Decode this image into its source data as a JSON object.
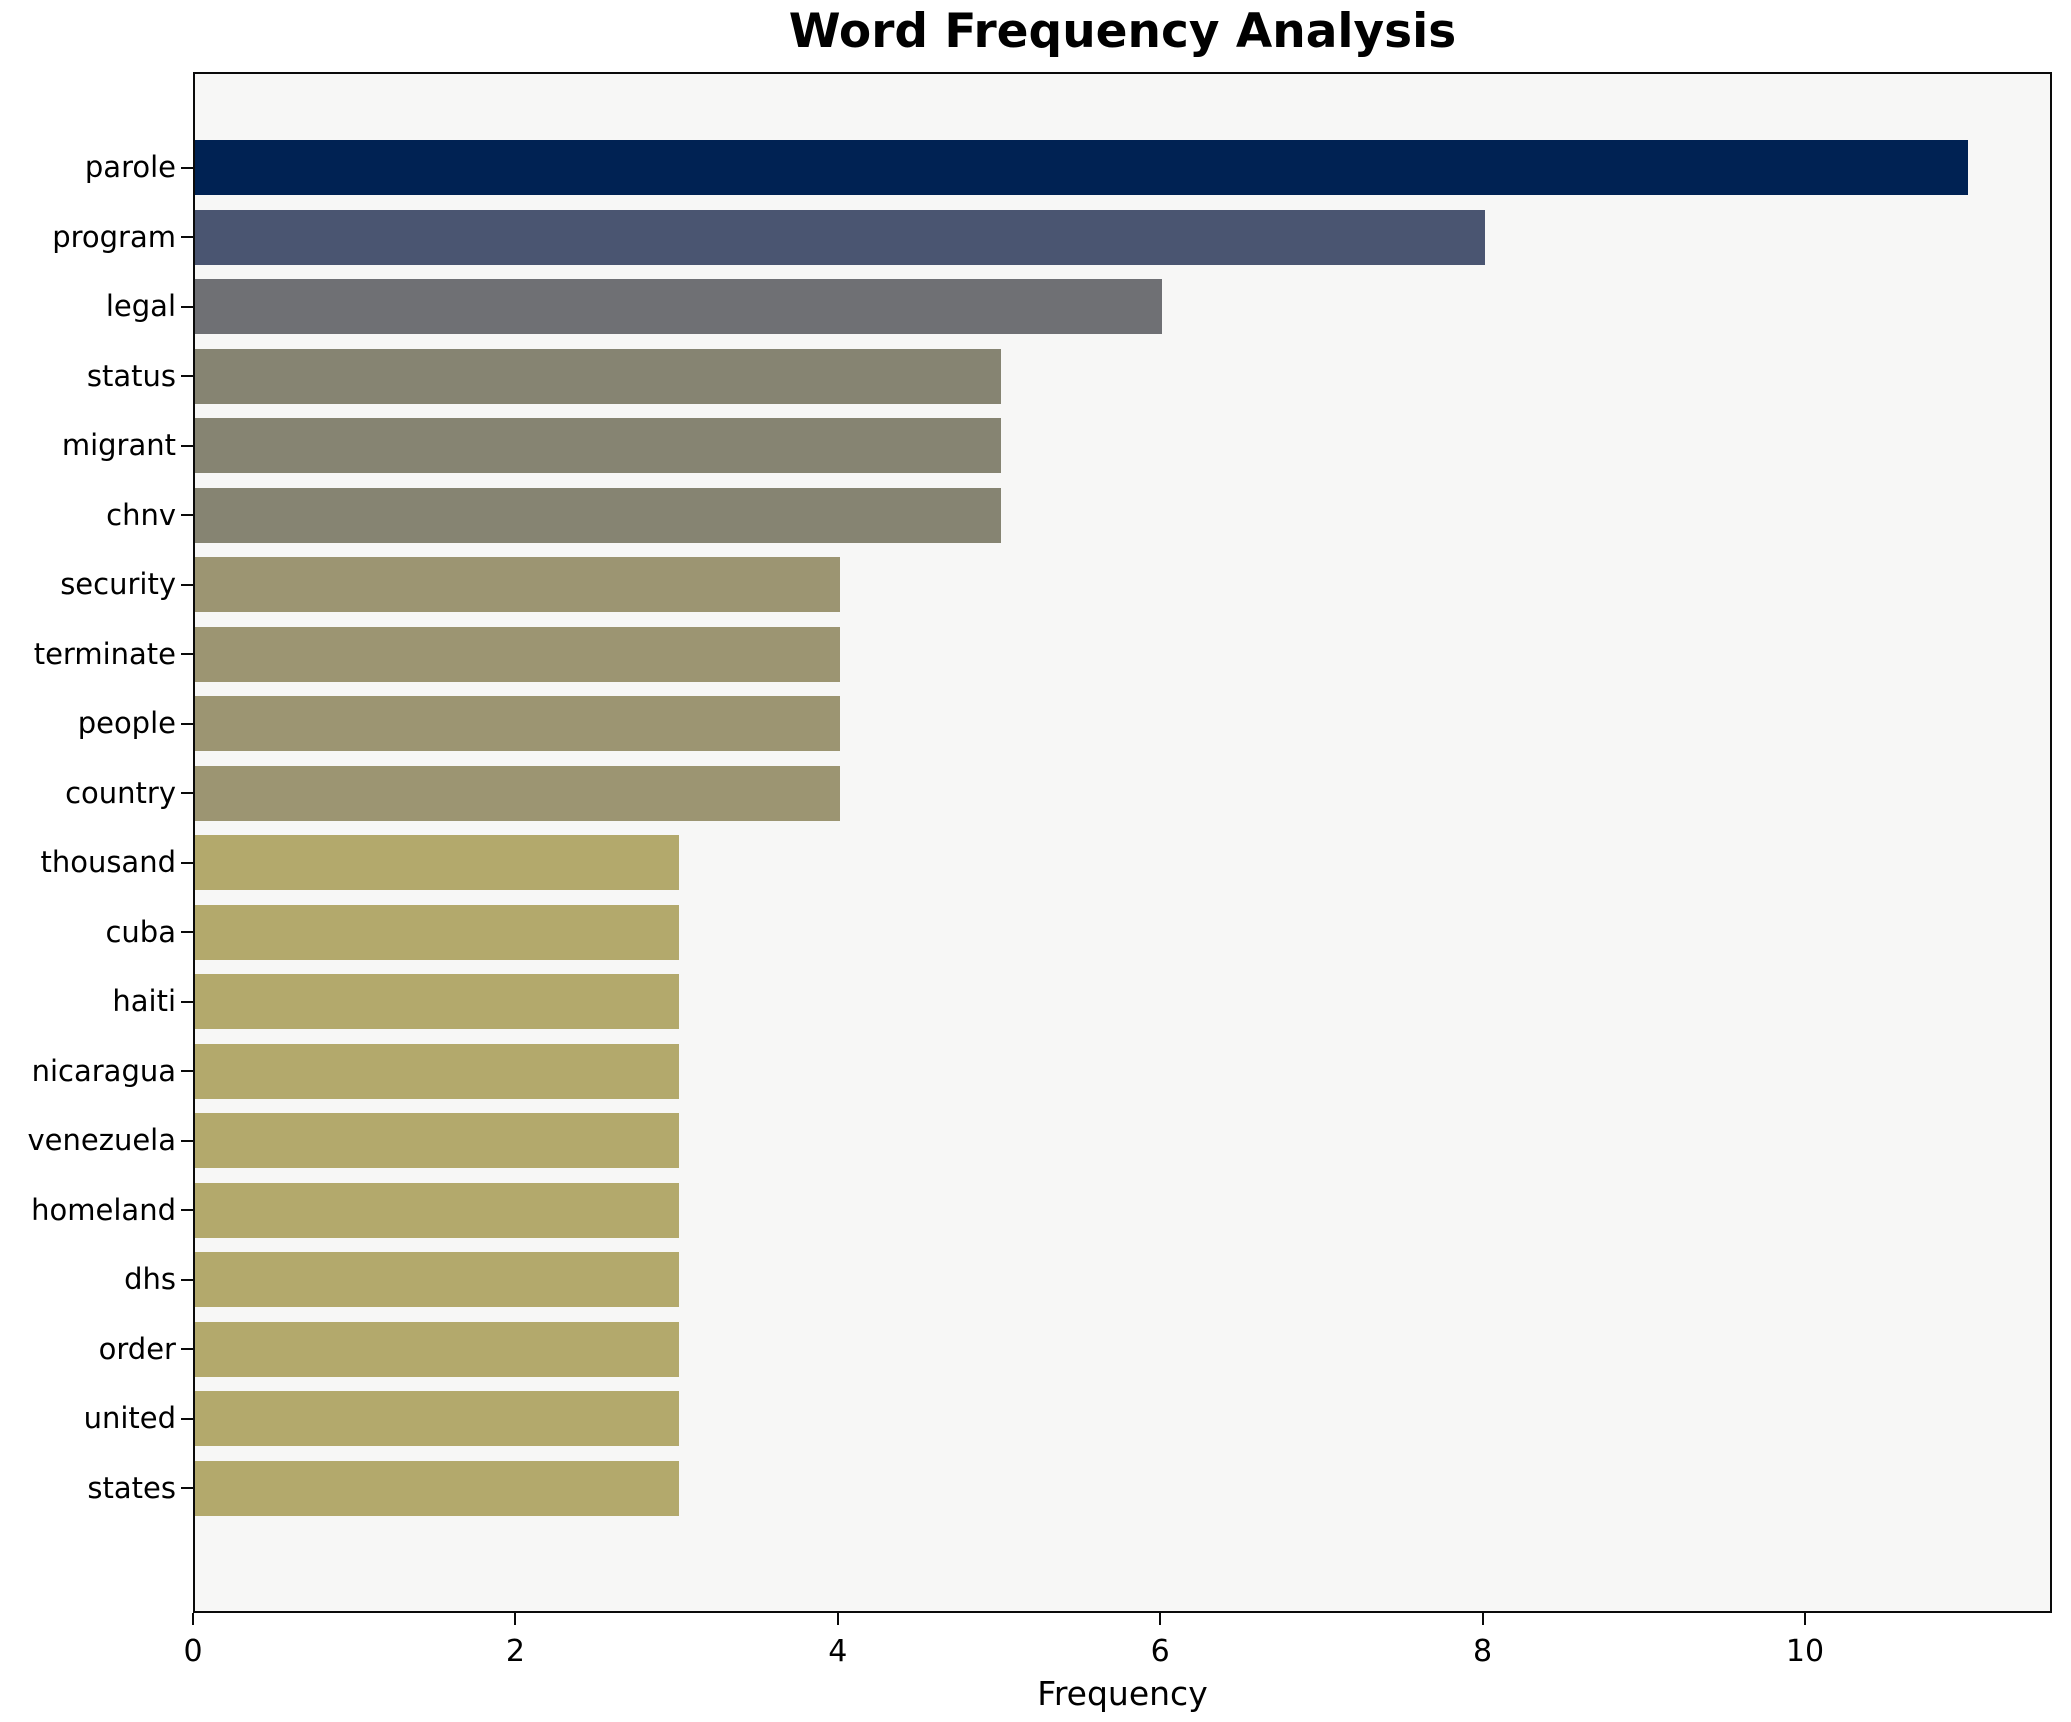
{
  "chart_data": {
    "type": "bar",
    "orientation": "horizontal",
    "title": "Word Frequency Analysis",
    "xlabel": "Frequency",
    "ylabel": "",
    "categories": [
      "parole",
      "program",
      "legal",
      "status",
      "migrant",
      "chnv",
      "security",
      "terminate",
      "people",
      "country",
      "thousand",
      "cuba",
      "haiti",
      "nicaragua",
      "venezuela",
      "homeland",
      "dhs",
      "order",
      "united",
      "states"
    ],
    "values": [
      11,
      8,
      6,
      5,
      5,
      5,
      4,
      4,
      4,
      4,
      3,
      3,
      3,
      3,
      3,
      3,
      3,
      3,
      3,
      3
    ],
    "bar_colors": [
      "#002253",
      "#4A5571",
      "#6F7074",
      "#868472",
      "#868472",
      "#868472",
      "#9C9572",
      "#9C9572",
      "#9C9572",
      "#9C9572",
      "#B3A96C",
      "#B3A96C",
      "#B3A96C",
      "#B3A96C",
      "#B3A96C",
      "#B3A96C",
      "#B3A96C",
      "#B3A96C",
      "#B3A96C",
      "#B3A96C"
    ],
    "xticks": [
      0,
      2,
      4,
      6,
      8,
      10
    ],
    "xtick_labels": [
      "0",
      "2",
      "4",
      "6",
      "8",
      "10"
    ],
    "xlim": [
      0,
      11.53
    ],
    "grid": false,
    "legend": null,
    "plot_background": "#f7f7f6",
    "figure_background": "#ffffff",
    "axis_color": "#0a0a0a",
    "text_color": "#000000"
  }
}
